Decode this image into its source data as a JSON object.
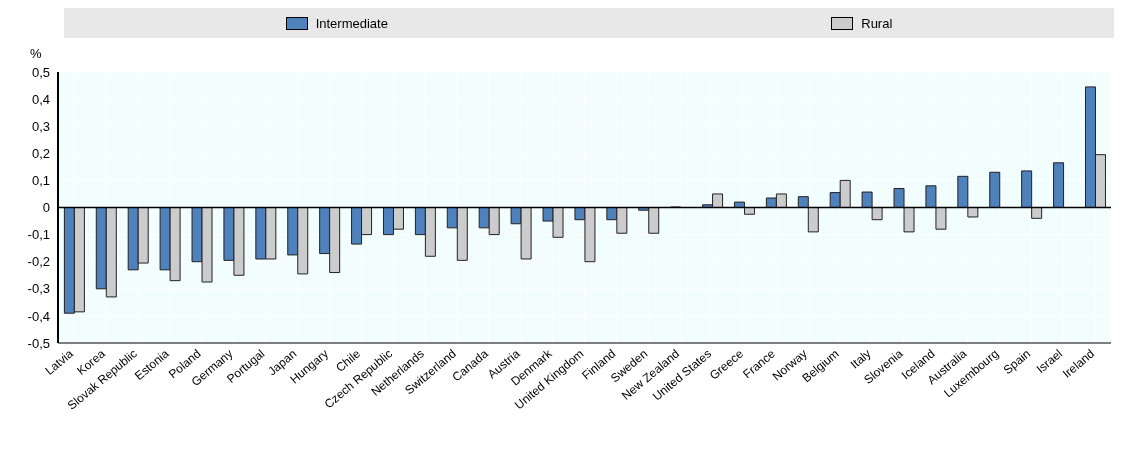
{
  "chart_data": {
    "type": "bar",
    "ylabel": "%",
    "categories": [
      "Latvia",
      "Korea",
      "Slovak Republic",
      "Estonia",
      "Poland",
      "Germany",
      "Portugal",
      "Japan",
      "Hungary",
      "Chile",
      "Czech Republic",
      "Netherlands",
      "Switzerland",
      "Canada",
      "Austria",
      "Denmark",
      "United Kingdom",
      "Finland",
      "Sweden",
      "New Zealand",
      "United States",
      "Greece",
      "France",
      "Norway",
      "Belgium",
      "Italy",
      "Slovenia",
      "Iceland",
      "Australia",
      "Luxembourg",
      "Spain",
      "Israel",
      "Ireland"
    ],
    "series": [
      {
        "name": "Intermediate",
        "color": "#4f81bd",
        "values": [
          -0.39,
          -0.3,
          -0.23,
          -0.23,
          -0.2,
          -0.195,
          -0.19,
          -0.175,
          -0.17,
          -0.135,
          -0.1,
          -0.1,
          -0.075,
          -0.075,
          -0.06,
          -0.05,
          -0.045,
          -0.045,
          -0.01,
          0.002,
          0.01,
          0.02,
          0.035,
          0.04,
          0.055,
          0.057,
          0.07,
          0.08,
          0.115,
          0.13,
          0.135,
          0.165,
          0.445
        ]
      },
      {
        "name": "Rural",
        "color": "#cccccc",
        "values": [
          -0.385,
          -0.33,
          -0.205,
          -0.27,
          -0.275,
          -0.25,
          -0.19,
          -0.245,
          -0.24,
          -0.1,
          -0.08,
          -0.18,
          -0.195,
          -0.1,
          -0.19,
          -0.11,
          -0.2,
          -0.095,
          -0.095,
          0,
          0.05,
          -0.025,
          0.05,
          -0.09,
          0.1,
          -0.045,
          -0.09,
          -0.08,
          -0.035,
          0,
          -0.04,
          0,
          0.195
        ]
      }
    ],
    "ylim": [
      -0.5,
      0.5
    ],
    "yticks": [
      {
        "value": -0.5,
        "label": "-0,5"
      },
      {
        "value": -0.4,
        "label": "-0,4"
      },
      {
        "value": -0.3,
        "label": "-0,3"
      },
      {
        "value": -0.2,
        "label": "-0,2"
      },
      {
        "value": -0.1,
        "label": "-0,1"
      },
      0,
      {
        "value": 0.1,
        "label": "0,1"
      },
      {
        "value": 0.2,
        "label": "0,2"
      },
      {
        "value": 0.3,
        "label": "0,3"
      },
      {
        "value": 0.4,
        "label": "0,4"
      },
      {
        "value": 0.5,
        "label": "0,5"
      }
    ],
    "grid": true,
    "legend": "top"
  }
}
